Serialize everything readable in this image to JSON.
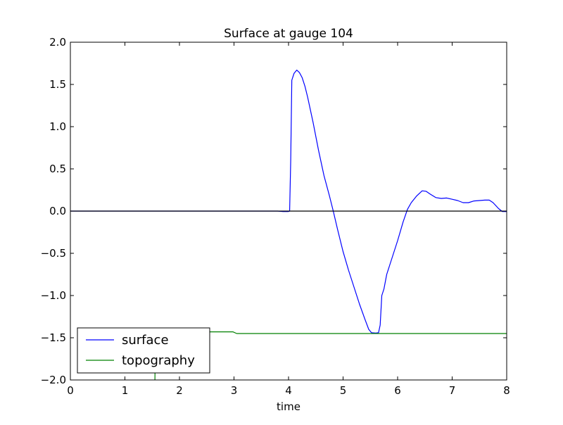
{
  "chart_data": {
    "type": "line",
    "title": "Surface at gauge 104",
    "xlabel": "time",
    "ylabel": "",
    "xlim": [
      0,
      8
    ],
    "ylim": [
      -2.0,
      2.0
    ],
    "grid": false,
    "legend_position": "lower-left",
    "x_ticks": [
      {
        "value": 0,
        "label": "0"
      },
      {
        "value": 1,
        "label": "1"
      },
      {
        "value": 2,
        "label": "2"
      },
      {
        "value": 3,
        "label": "3"
      },
      {
        "value": 4,
        "label": "4"
      },
      {
        "value": 5,
        "label": "5"
      },
      {
        "value": 6,
        "label": "6"
      },
      {
        "value": 7,
        "label": "7"
      },
      {
        "value": 8,
        "label": "8"
      }
    ],
    "y_ticks": [
      {
        "value": -2.0,
        "label": "−2.0"
      },
      {
        "value": -1.5,
        "label": "−1.5"
      },
      {
        "value": -1.0,
        "label": "−1.0"
      },
      {
        "value": -0.5,
        "label": "−0.5"
      },
      {
        "value": 0.0,
        "label": "0.0"
      },
      {
        "value": 0.5,
        "label": "0.5"
      },
      {
        "value": 1.0,
        "label": "1.0"
      },
      {
        "value": 1.5,
        "label": "1.5"
      },
      {
        "value": 2.0,
        "label": "2.0"
      }
    ],
    "reference_line": {
      "y": 0.0,
      "color": "#000000"
    },
    "series": [
      {
        "name": "surface",
        "color": "#0000ff",
        "points": [
          [
            0,
            0
          ],
          [
            1,
            0
          ],
          [
            2,
            0
          ],
          [
            3,
            0
          ],
          [
            3.8,
            0
          ],
          [
            3.9,
            -0.005
          ],
          [
            4.0,
            -0.005
          ],
          [
            4.02,
            0.0
          ],
          [
            4.04,
            0.6
          ],
          [
            4.06,
            1.55
          ],
          [
            4.1,
            1.63
          ],
          [
            4.15,
            1.67
          ],
          [
            4.2,
            1.64
          ],
          [
            4.25,
            1.58
          ],
          [
            4.3,
            1.48
          ],
          [
            4.35,
            1.35
          ],
          [
            4.45,
            1.05
          ],
          [
            4.55,
            0.72
          ],
          [
            4.65,
            0.42
          ],
          [
            4.75,
            0.18
          ],
          [
            4.82,
            0.0
          ],
          [
            4.9,
            -0.22
          ],
          [
            5.0,
            -0.48
          ],
          [
            5.1,
            -0.7
          ],
          [
            5.2,
            -0.9
          ],
          [
            5.3,
            -1.1
          ],
          [
            5.4,
            -1.28
          ],
          [
            5.47,
            -1.4
          ],
          [
            5.52,
            -1.44
          ],
          [
            5.6,
            -1.445
          ],
          [
            5.65,
            -1.44
          ],
          [
            5.68,
            -1.35
          ],
          [
            5.71,
            -1.0
          ],
          [
            5.75,
            -0.92
          ],
          [
            5.8,
            -0.75
          ],
          [
            5.85,
            -0.65
          ],
          [
            5.9,
            -0.55
          ],
          [
            6.0,
            -0.35
          ],
          [
            6.1,
            -0.13
          ],
          [
            6.18,
            0.02
          ],
          [
            6.25,
            0.1
          ],
          [
            6.35,
            0.18
          ],
          [
            6.45,
            0.24
          ],
          [
            6.52,
            0.235
          ],
          [
            6.6,
            0.2
          ],
          [
            6.7,
            0.16
          ],
          [
            6.8,
            0.15
          ],
          [
            6.9,
            0.155
          ],
          [
            7.0,
            0.14
          ],
          [
            7.1,
            0.125
          ],
          [
            7.2,
            0.1
          ],
          [
            7.3,
            0.1
          ],
          [
            7.4,
            0.12
          ],
          [
            7.5,
            0.125
          ],
          [
            7.6,
            0.13
          ],
          [
            7.68,
            0.13
          ],
          [
            7.75,
            0.1
          ],
          [
            7.85,
            0.03
          ],
          [
            7.92,
            -0.005
          ],
          [
            8.0,
            -0.005
          ]
        ]
      },
      {
        "name": "topography",
        "color": "#008000",
        "points": [
          [
            1.55,
            -2.0
          ],
          [
            1.56,
            -1.43
          ],
          [
            2.5,
            -1.43
          ],
          [
            2.98,
            -1.43
          ],
          [
            3.05,
            -1.45
          ],
          [
            4.0,
            -1.45
          ],
          [
            6.0,
            -1.45
          ],
          [
            8.0,
            -1.45
          ]
        ]
      }
    ]
  }
}
